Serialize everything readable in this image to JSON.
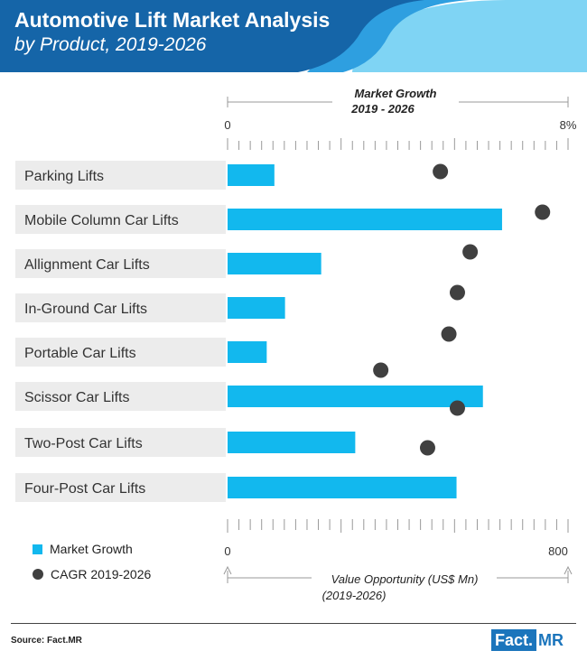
{
  "header": {
    "title": "Automotive Lift Market Analysis",
    "subtitle": "by Product, 2019-2026"
  },
  "colors": {
    "header_dark": "#1565a8",
    "header_mid": "#2e9fe0",
    "header_light": "#7fd4f4",
    "bar": "#12b8ee",
    "dot": "#404040",
    "label_bg": "#ececec"
  },
  "chart_data": {
    "type": "bar",
    "categories": [
      "Parking Lifts",
      "Mobile Column Car Lifts",
      "Allignment Car Lifts",
      "In-Ground Car Lifts",
      "Portable Car Lifts",
      "Scissor Car Lifts",
      "Two-Post Car Lifts",
      "Four-Post Car Lifts"
    ],
    "series": [
      {
        "name": "Market Growth",
        "values": [
          110,
          645,
          220,
          135,
          92,
          600,
          300,
          538
        ]
      },
      {
        "name": "CAGR 2019-2026",
        "values": [
          5.0,
          7.4,
          5.7,
          5.4,
          5.2,
          3.6,
          5.4,
          4.7
        ]
      }
    ],
    "top_axis": {
      "title_line1": "Market Growth",
      "title_line2": "2019 - 2026",
      "min_label": "0",
      "max_label": "8%",
      "range": [
        0,
        8
      ]
    },
    "bottom_axis": {
      "title_line1": "Value Opportunity (US$ Mn)",
      "title_line2": "(2019-2026)",
      "min_label": "0",
      "max_label": "800",
      "range": [
        0,
        800
      ]
    },
    "legend_position": "bottom-left"
  },
  "legend": {
    "bar_label": "Market Growth",
    "dot_label": "CAGR 2019-2026"
  },
  "footer": {
    "source": "Source: Fact.MR",
    "logo_left": "Fact.",
    "logo_right": "MR"
  }
}
